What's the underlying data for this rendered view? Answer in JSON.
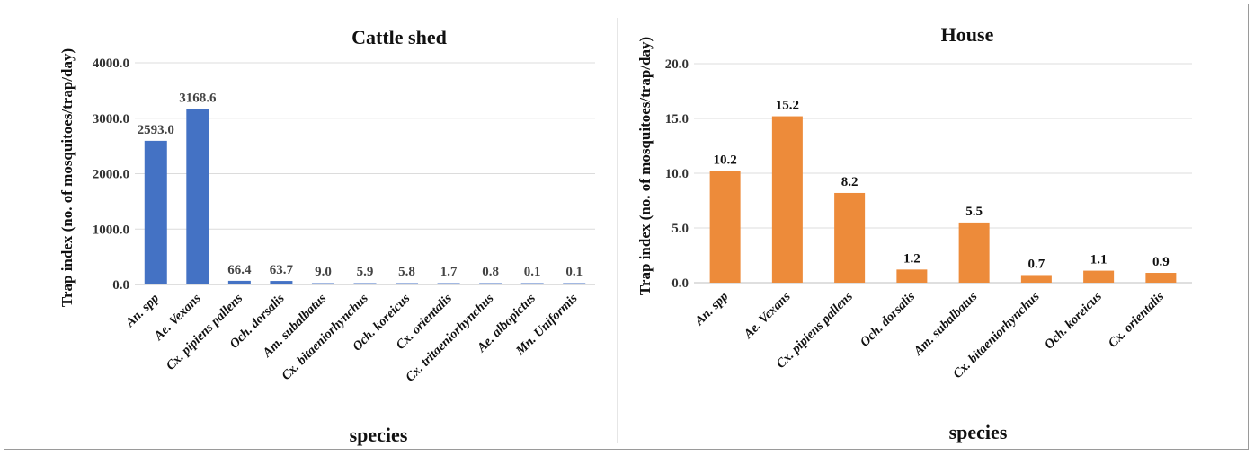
{
  "chart_data": [
    {
      "type": "bar",
      "title": "Cattle shed",
      "xlabel": "species",
      "ylabel": "Trap index (no. of mosquitoes/trap/day)",
      "ylim": [
        0,
        4000
      ],
      "yticks": [
        "0.0",
        "1000.0",
        "2000.0",
        "3000.0",
        "4000.0"
      ],
      "grid": true,
      "color": "#4472C4",
      "categories": [
        "An. spp",
        "Ae. Vexans",
        "Cx. pipiens pallens",
        "Och. dorsalis",
        "Am. subalbatus",
        "Cx. bitaeniorhynchus",
        "Och. koreicus",
        "Cx. orientalis",
        "Cx. tritaeniorhynchus",
        "Ae. albopictus",
        "Mn. Uniformis"
      ],
      "values": [
        2593.0,
        3168.6,
        66.4,
        63.7,
        9.0,
        5.9,
        5.8,
        1.7,
        0.8,
        0.1,
        0.1
      ],
      "data_labels": [
        "2593.0",
        "3168.6",
        "66.4",
        "63.7",
        "9.0",
        "5.9",
        "5.8",
        "1.7",
        "0.8",
        "0.1",
        "0.1"
      ]
    },
    {
      "type": "bar",
      "title": "House",
      "xlabel": "species",
      "ylabel": "Trap index (no. of mosquitoes/trap/day)",
      "ylim": [
        0,
        20
      ],
      "yticks": [
        "0.0",
        "5.0",
        "10.0",
        "15.0",
        "20.0"
      ],
      "grid": true,
      "color": "#ED8B3A",
      "categories": [
        "An. spp",
        "Ae. Vexans",
        "Cx. pipiens pallens",
        "Och. dorsalis",
        "Am. subalbatus",
        "Cx. bitaeniorhynchus",
        "Och. koreicus",
        "Cx. orientalis"
      ],
      "values": [
        10.2,
        15.2,
        8.2,
        1.2,
        5.5,
        0.7,
        1.1,
        0.9
      ],
      "data_labels": [
        "10.2",
        "15.2",
        "8.2",
        "1.2",
        "5.5",
        "0.7",
        "1.1",
        "0.9"
      ]
    }
  ]
}
